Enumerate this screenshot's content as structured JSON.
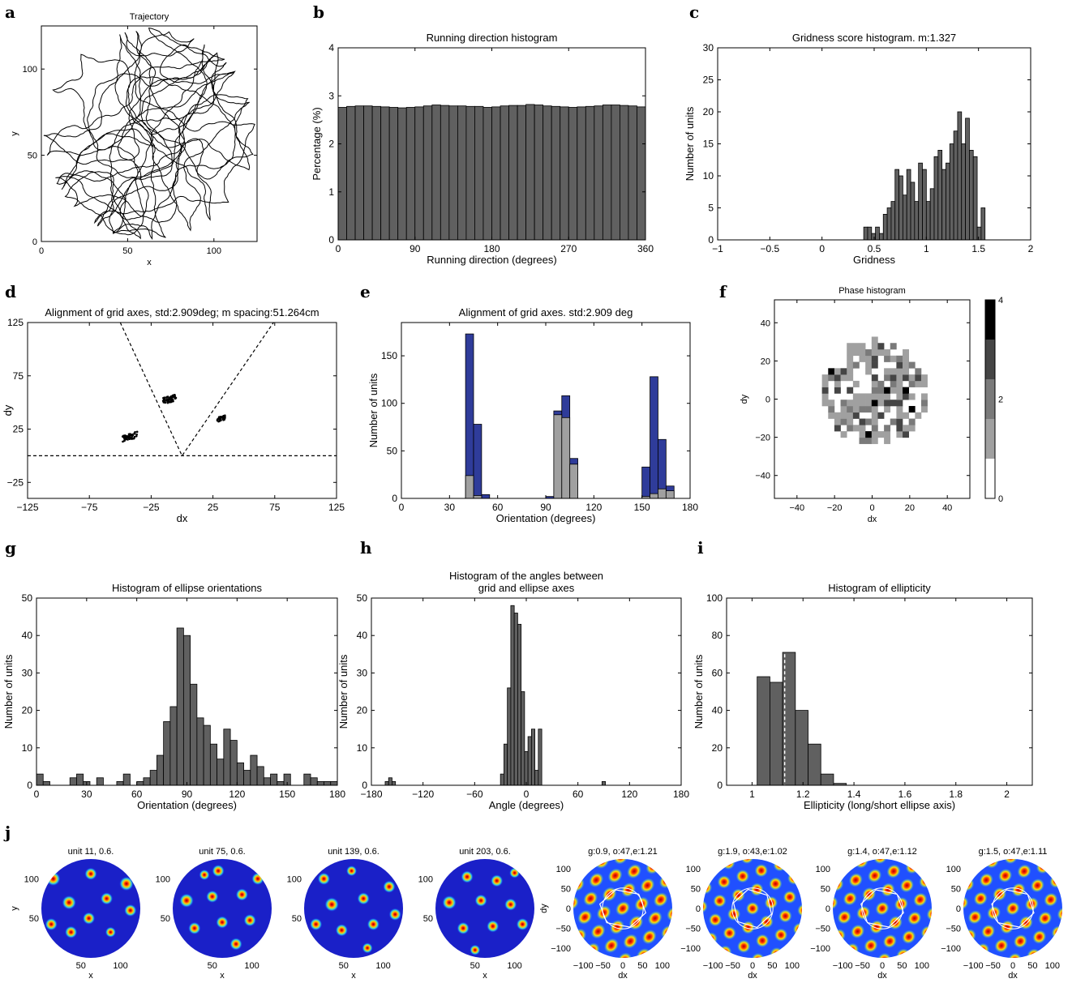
{
  "panels": [
    {
      "id": "a",
      "type": "line",
      "title": "Trajectory",
      "xlabel": "x",
      "ylabel": "y",
      "xlim": [
        0,
        125
      ],
      "ylim": [
        0,
        125
      ],
      "xticks": [
        0,
        50,
        100
      ],
      "yticks": [
        0,
        50,
        100
      ],
      "circle": {
        "cx": 62.5,
        "cy": 62.5,
        "r": 62.5
      }
    },
    {
      "id": "b",
      "type": "bar",
      "title": "Running direction histogram",
      "xlabel": "Running direction (degrees)",
      "ylabel": "Percentage (%)",
      "xlim": [
        0,
        360
      ],
      "ylim": [
        0,
        4
      ],
      "xticks": [
        0,
        90,
        180,
        270,
        360
      ],
      "yticks": [
        0,
        1,
        2,
        3,
        4
      ],
      "bin_start": 0,
      "bin_width": 10,
      "values": [
        2.76,
        2.78,
        2.79,
        2.79,
        2.78,
        2.77,
        2.76,
        2.75,
        2.76,
        2.77,
        2.79,
        2.81,
        2.8,
        2.79,
        2.79,
        2.78,
        2.78,
        2.76,
        2.77,
        2.79,
        2.8,
        2.8,
        2.82,
        2.81,
        2.79,
        2.78,
        2.77,
        2.76,
        2.77,
        2.78,
        2.79,
        2.81,
        2.81,
        2.8,
        2.79,
        2.77
      ]
    },
    {
      "id": "c",
      "type": "bar",
      "title": "Gridness score histogram. m:1.327",
      "xlabel": "Gridness",
      "ylabel": "Number of units",
      "xlim": [
        -1,
        2
      ],
      "ylim": [
        0,
        30
      ],
      "xticks": [
        -1,
        -0.5,
        0,
        0.5,
        1,
        1.5,
        2
      ],
      "xtick_labels": [
        "−1",
        "−0.5",
        "0",
        "0.5",
        "1",
        "1.5",
        "2"
      ],
      "yticks": [
        0,
        5,
        10,
        15,
        20,
        25,
        30
      ],
      "bin_start": 0.4,
      "bin_width": 0.0375,
      "values": [
        2,
        2,
        1,
        2,
        1,
        4,
        5,
        6,
        11,
        10,
        7,
        11,
        9,
        6,
        12,
        11,
        6,
        8,
        13,
        14,
        11,
        12,
        15,
        17,
        20,
        15,
        19,
        14,
        13,
        2,
        5
      ]
    },
    {
      "id": "d",
      "type": "scatter",
      "title": "Alignment of grid axes, std:2.909deg; m spacing:51.264cm",
      "xlabel": "dx",
      "ylabel": "dy",
      "xlim": [
        -125,
        125
      ],
      "ylim": [
        -40,
        125
      ],
      "xticks": [
        -125,
        -75,
        -25,
        25,
        75,
        125
      ],
      "xtick_labels": [
        "−125",
        "−75",
        "−25",
        "25",
        "75",
        "125"
      ],
      "yticks": [
        -25,
        25,
        75,
        125
      ],
      "ytick_labels": [
        "−25",
        "25",
        "75",
        "125"
      ],
      "clusters": [
        {
          "cx": -42,
          "cy": 18,
          "dx": 6,
          "dy": 3,
          "n": 60
        },
        {
          "cx": -10,
          "cy": 53,
          "dx": 5,
          "dy": 3,
          "n": 60
        },
        {
          "cx": 32,
          "cy": 35,
          "dx": 3,
          "dy": 2,
          "n": 30
        }
      ],
      "lines": [
        [
          [
            -50,
            125
          ],
          [
            0,
            0
          ],
          [
            74,
            125
          ]
        ],
        [
          [
            -125,
            0
          ],
          [
            125,
            0
          ]
        ]
      ]
    },
    {
      "id": "e",
      "type": "bar",
      "title": "Alignment of grid axes. std:2.909 deg",
      "xlabel": "Orientation (degrees)",
      "ylabel": "Number of units",
      "xlim": [
        0,
        180
      ],
      "ylim": [
        0,
        185
      ],
      "xticks": [
        0,
        30,
        60,
        90,
        120,
        150,
        180
      ],
      "yticks": [
        0,
        50,
        100,
        150
      ],
      "bin_start": 0,
      "bin_width": 5,
      "series": [
        {
          "name": "",
          "color": "#2f3c9a",
          "values": [
            0,
            0,
            0,
            0,
            0,
            0,
            0,
            0,
            173,
            78,
            4,
            0,
            0,
            0,
            0,
            0,
            0,
            0,
            2,
            92,
            108,
            42,
            0,
            0,
            0,
            0,
            0,
            0,
            0,
            0,
            33,
            128,
            62,
            13,
            0,
            0
          ]
        },
        {
          "name": "",
          "color": "#a0a0a0",
          "values": [
            0,
            0,
            0,
            0,
            0,
            0,
            0,
            0,
            24,
            3,
            0,
            0,
            0,
            0,
            0,
            0,
            0,
            0,
            0,
            88,
            85,
            36,
            0,
            0,
            0,
            0,
            0,
            0,
            0,
            0,
            2,
            5,
            10,
            8,
            0,
            0
          ]
        }
      ]
    },
    {
      "id": "f",
      "type": "heatmap",
      "title": "Phase histogram",
      "xlabel": "dx",
      "ylabel": "dy",
      "xlim": [
        -52,
        52
      ],
      "ylim": [
        -52,
        52
      ],
      "xticks": [
        -40,
        -20,
        0,
        20,
        40
      ],
      "xtick_labels": [
        "−40",
        "−20",
        "0",
        "20",
        "40"
      ],
      "yticks": [
        -40,
        -20,
        0,
        20,
        40
      ],
      "ytick_labels": [
        "−40",
        "−20",
        "0",
        "20",
        "40"
      ],
      "colorbar": {
        "min": 0,
        "max": 4,
        "ticks": [
          0,
          2,
          4
        ],
        "colors": [
          "#ffffff",
          "#a0a0a0",
          "#7a7a7a",
          "#454545",
          "#000000"
        ]
      }
    },
    {
      "id": "g",
      "type": "bar",
      "title": "Histogram of ellipse orientations",
      "xlabel": "Orientation (degrees)",
      "ylabel": "Number of units",
      "xlim": [
        0,
        180
      ],
      "ylim": [
        0,
        50
      ],
      "xticks": [
        0,
        30,
        60,
        90,
        120,
        150,
        180
      ],
      "yticks": [
        0,
        10,
        20,
        30,
        40,
        50
      ],
      "bin_start": 0,
      "bin_width": 4,
      "values": [
        3,
        1,
        0,
        0,
        0,
        2,
        3,
        1,
        0,
        2,
        0,
        0,
        1,
        3,
        0,
        1,
        2,
        4,
        8,
        17,
        21,
        42,
        40,
        27,
        18,
        16,
        11,
        7,
        15,
        12,
        6,
        4,
        8,
        5,
        2,
        3,
        1,
        3,
        0,
        0,
        3,
        2,
        1,
        1,
        1
      ]
    },
    {
      "id": "h",
      "type": "bar",
      "title": "Histogram of the angles between\ngrid and ellipse axes",
      "xlabel": "Angle (degrees)",
      "ylabel": "Number of units",
      "xlim": [
        -180,
        180
      ],
      "ylim": [
        0,
        50
      ],
      "xticks": [
        -180,
        -120,
        -60,
        0,
        60,
        120,
        180
      ],
      "xtick_labels": [
        "−180",
        "−120",
        "−60",
        "0",
        "60",
        "120",
        "180"
      ],
      "yticks": [
        0,
        10,
        20,
        30,
        40,
        50
      ],
      "bin_start": -30,
      "bin_width": 4,
      "values": [
        3,
        11,
        26,
        48,
        46,
        43,
        25,
        9,
        13,
        15,
        4,
        15
      ],
      "extra_bars": [
        {
          "x": -164,
          "w": 4,
          "v": 1
        },
        {
          "x": -160,
          "w": 4,
          "v": 2
        },
        {
          "x": -156,
          "w": 4,
          "v": 1
        },
        {
          "x": 88,
          "w": 4,
          "v": 1
        }
      ]
    },
    {
      "id": "i",
      "type": "bar",
      "title": "Histogram of ellipticity",
      "xlabel": "Ellipticity (long/short ellipse axis)",
      "ylabel": "Number of units",
      "xlim": [
        0.9,
        2.1
      ],
      "ylim": [
        0,
        100
      ],
      "xticks": [
        1,
        1.2,
        1.4,
        1.6,
        1.8,
        2
      ],
      "yticks": [
        0,
        20,
        40,
        60,
        80,
        100
      ],
      "bin_start": 1.02,
      "bin_width": 0.05,
      "values": [
        58,
        55,
        71,
        40,
        22,
        6,
        1
      ],
      "mean_line": 1.128
    }
  ],
  "panel_j": {
    "rate_maps": [
      {
        "title": "unit 11, 0.6.",
        "peaks": [
          [
            12,
            80,
            8
          ],
          [
            28,
            56,
            8
          ],
          [
            50,
            85,
            7
          ],
          [
            66,
            60,
            7
          ],
          [
            86,
            75,
            8
          ],
          [
            30,
            26,
            7
          ],
          [
            48,
            40,
            7
          ],
          [
            70,
            26,
            6
          ],
          [
            90,
            48,
            7
          ],
          [
            10,
            34,
            7
          ]
        ]
      },
      {
        "title": "unit 75, 0.6.",
        "peaks": [
          [
            46,
            88,
            7
          ],
          [
            14,
            58,
            8
          ],
          [
            40,
            62,
            7
          ],
          [
            70,
            64,
            7
          ],
          [
            86,
            80,
            7
          ],
          [
            22,
            30,
            7
          ],
          [
            50,
            36,
            7
          ],
          [
            78,
            38,
            7
          ],
          [
            64,
            14,
            7
          ],
          [
            32,
            84,
            6
          ]
        ]
      },
      {
        "title": "unit 139, 0.6.",
        "peaks": [
          [
            20,
            80,
            7
          ],
          [
            48,
            88,
            6
          ],
          [
            28,
            54,
            8
          ],
          [
            60,
            60,
            7
          ],
          [
            86,
            72,
            7
          ],
          [
            38,
            28,
            7
          ],
          [
            70,
            34,
            7
          ],
          [
            12,
            34,
            7
          ],
          [
            92,
            44,
            7
          ],
          [
            64,
            10,
            6
          ]
        ]
      },
      {
        "title": "unit 203, 0.6.",
        "peaks": [
          [
            32,
            82,
            7
          ],
          [
            62,
            78,
            7
          ],
          [
            14,
            56,
            8
          ],
          [
            46,
            58,
            7
          ],
          [
            76,
            54,
            7
          ],
          [
            28,
            30,
            7
          ],
          [
            58,
            32,
            7
          ],
          [
            88,
            34,
            7
          ],
          [
            40,
            8,
            6
          ],
          [
            80,
            86,
            6
          ]
        ]
      }
    ],
    "rate_x_label": "x",
    "rate_y_label": "y",
    "rate_xticks": [
      50,
      100
    ],
    "rate_yticks": [
      50,
      100
    ],
    "autocorrs": [
      {
        "title": "g:0.9, o:47,e:1.21",
        "angle": 47,
        "ell": 1.21
      },
      {
        "title": "g:1.9, o:43,e:1.02",
        "angle": 43,
        "ell": 1.02
      },
      {
        "title": "g:1.4, o:47,e:1.12",
        "angle": 47,
        "ell": 1.12
      },
      {
        "title": "g:1.5, o:47,e:1.11",
        "angle": 47,
        "ell": 1.11
      }
    ],
    "ac_x_label": "dx",
    "ac_y_label": "dy",
    "ac_xticks": [
      -100,
      -50,
      0,
      50,
      100
    ],
    "ac_xtick_labels": [
      "−100",
      "−50",
      "0",
      "50",
      "100"
    ],
    "ac_yticks": [
      -100,
      -50,
      0,
      50,
      100
    ],
    "ac_ytick_labels": [
      "−100",
      "−50",
      "0",
      "50",
      "100"
    ]
  }
}
